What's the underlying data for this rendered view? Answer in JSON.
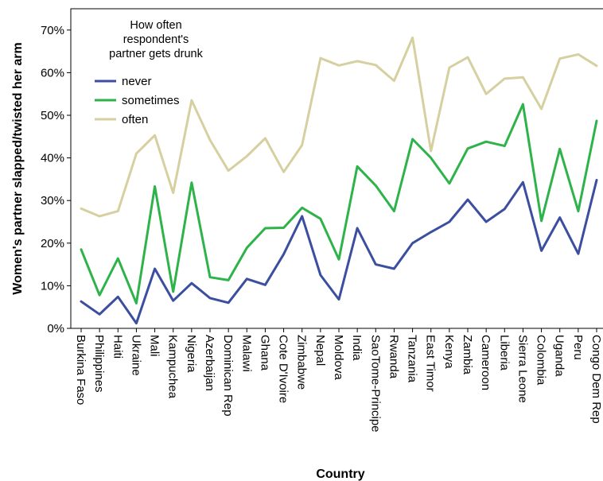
{
  "chart_data": {
    "type": "line",
    "xlabel": "Country",
    "ylabel": "Women's partner slapped/twisted her arm",
    "ylim": [
      0,
      75
    ],
    "yticks": [
      0,
      10,
      20,
      30,
      40,
      50,
      60,
      70
    ],
    "ytick_labels": [
      "0%",
      "10%",
      "20%",
      "30%",
      "40%",
      "50%",
      "60%",
      "70%"
    ],
    "grid": false,
    "legend": {
      "title_lines": [
        "How often",
        "respondent's",
        "partner gets drunk"
      ],
      "placement": "top-left"
    },
    "categories": [
      "Burkina Faso",
      "Philippines",
      "Haiti",
      "Ukraine",
      "Mali",
      "Kampuchea",
      "Nigeria",
      "Azerbaijan",
      "Dominican Rep",
      "Malawi",
      "Ghana",
      "Cote D'Ivoire",
      "Zimbabwe",
      "Nepal",
      "Moldova",
      "India",
      "SaoTome-Principe",
      "Rwanda",
      "Tanzania",
      "East Timor",
      "Kenya",
      "Zambia",
      "Cameroon",
      "Liberia",
      "Sierra Leone",
      "Colombia",
      "Uganda",
      "Peru",
      "Congo Dem Rep"
    ],
    "series": [
      {
        "name": "never",
        "color": "#3b4ea0",
        "values": [
          6.3,
          3.3,
          7.4,
          1.2,
          14.0,
          6.5,
          10.6,
          7.1,
          6.0,
          11.6,
          10.2,
          17.4,
          26.3,
          12.5,
          6.8,
          23.5,
          15.0,
          14.0,
          20.0,
          22.6,
          25.0,
          30.2,
          25.0,
          28.0,
          34.3,
          18.2,
          26.0,
          17.5,
          34.8
        ]
      },
      {
        "name": "sometimes",
        "color": "#2eb34a",
        "values": [
          18.5,
          7.8,
          16.4,
          5.9,
          33.3,
          8.6,
          34.2,
          12.0,
          11.3,
          18.9,
          23.5,
          23.6,
          28.3,
          25.7,
          16.2,
          38.0,
          33.5,
          27.5,
          44.4,
          40.0,
          34.0,
          42.2,
          43.8,
          42.8,
          52.6,
          25.2,
          42.1,
          27.5,
          48.7
        ]
      },
      {
        "name": "often",
        "color": "#d6d0a0",
        "values": [
          28.1,
          26.3,
          27.5,
          41.0,
          45.3,
          31.8,
          53.5,
          44.2,
          37.0,
          40.4,
          44.6,
          36.7,
          43.0,
          63.4,
          61.7,
          62.7,
          61.8,
          58.1,
          68.2,
          41.6,
          61.2,
          63.6,
          55.0,
          58.6,
          58.9,
          51.5,
          63.3,
          64.3,
          61.6
        ]
      }
    ]
  }
}
